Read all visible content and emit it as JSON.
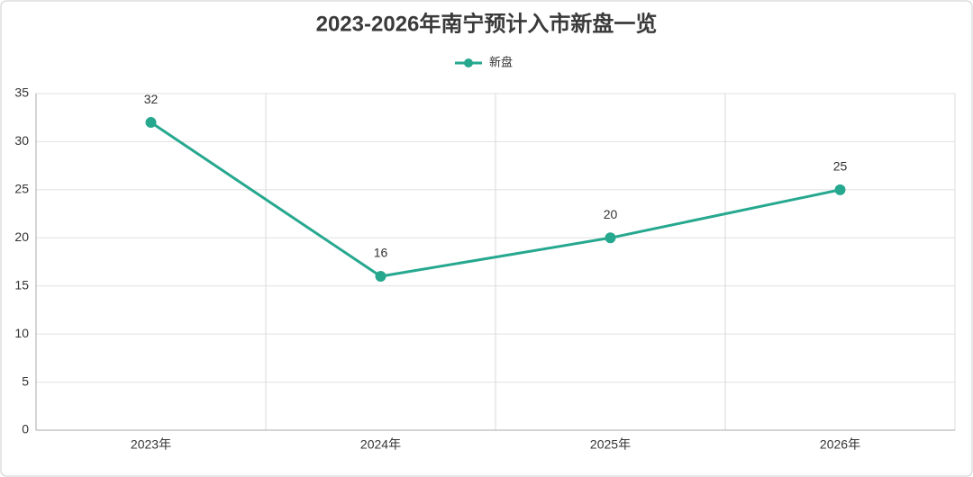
{
  "chart_data": {
    "type": "line",
    "title": "2023-2026年南宁预计入市新盘一览",
    "categories": [
      "2023年",
      "2024年",
      "2025年",
      "2026年"
    ],
    "series": [
      {
        "name": "新盘",
        "color": "#26a88f",
        "values": [
          32,
          16,
          20,
          25
        ]
      }
    ],
    "ylim": [
      0,
      35
    ],
    "yticks": [
      0,
      5,
      10,
      15,
      20,
      25,
      30,
      35
    ],
    "grid": true,
    "legend": "top"
  }
}
